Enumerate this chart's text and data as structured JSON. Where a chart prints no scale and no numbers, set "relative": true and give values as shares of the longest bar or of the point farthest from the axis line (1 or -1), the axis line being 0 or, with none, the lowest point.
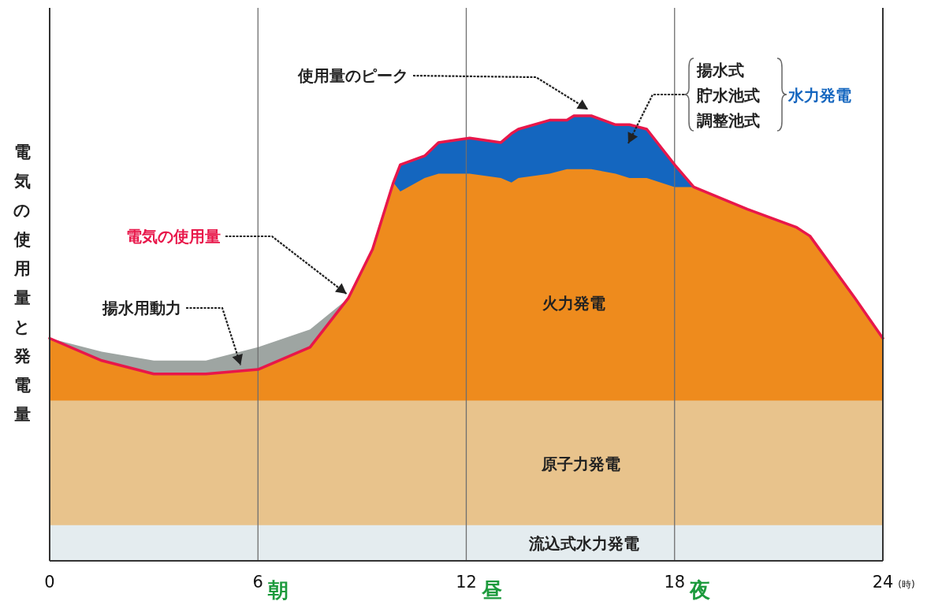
{
  "chart_data": {
    "type": "area",
    "relative": true,
    "ylabel": "電気の使用量と発電量",
    "xlabel": "(時)",
    "xlim": [
      0,
      24
    ],
    "xticks": [
      0,
      6,
      12,
      18,
      24
    ],
    "grid": "x",
    "x": [
      0,
      1.5,
      3,
      4.5,
      6,
      7.5,
      8.6,
      9.3,
      9.9,
      10.1,
      10.8,
      11.2,
      12.1,
      13.0,
      13.3,
      13.5,
      14.4,
      14.9,
      15.1,
      15.6,
      16.3,
      16.7,
      17.2,
      18.0,
      18.55,
      20.1,
      21.5,
      21.9,
      23.2,
      24
    ],
    "series": [
      {
        "name": "揚水用動力",
        "color": "#9ea5a2",
        "values": [
          0.5,
          0.47,
          0.45,
          0.45,
          0.48,
          0.52,
          0.59,
          null,
          null,
          null,
          null,
          null,
          null,
          null,
          null,
          null,
          null,
          null,
          null,
          null,
          null,
          null,
          null,
          null,
          null,
          null,
          null,
          null,
          null,
          null
        ]
      },
      {
        "name": "水力発電",
        "color": "#1466bf",
        "values": [
          null,
          null,
          null,
          null,
          null,
          null,
          null,
          null,
          0.85,
          0.89,
          0.91,
          0.94,
          0.95,
          0.94,
          0.96,
          0.97,
          0.99,
          0.99,
          1.0,
          1.0,
          0.98,
          0.98,
          0.97,
          0.89,
          0.84,
          null,
          null,
          null,
          null,
          null
        ]
      },
      {
        "name": "火力発電",
        "color": "#ee8b1d",
        "values": [
          0.5,
          0.45,
          0.42,
          0.42,
          0.43,
          0.48,
          0.59,
          0.7,
          0.85,
          0.83,
          0.86,
          0.87,
          0.87,
          0.86,
          0.85,
          0.86,
          0.87,
          0.88,
          0.88,
          0.88,
          0.87,
          0.86,
          0.86,
          0.84,
          0.84,
          0.79,
          0.75,
          0.73,
          0.59,
          0.5
        ]
      },
      {
        "name": "原子力発電",
        "color": "#e8c38c",
        "values": [
          0.36,
          0.36,
          0.36,
          0.36,
          0.36,
          0.36,
          0.36,
          0.36,
          0.36,
          0.36,
          0.36,
          0.36,
          0.36,
          0.36,
          0.36,
          0.36,
          0.36,
          0.36,
          0.36,
          0.36,
          0.36,
          0.36,
          0.36,
          0.36,
          0.36,
          0.36,
          0.36,
          0.36,
          0.36,
          0.36
        ]
      },
      {
        "name": "流込式水力発電",
        "color": "#e4ecef",
        "values": [
          0.08,
          0.08,
          0.08,
          0.08,
          0.08,
          0.08,
          0.08,
          0.08,
          0.08,
          0.08,
          0.08,
          0.08,
          0.08,
          0.08,
          0.08,
          0.08,
          0.08,
          0.08,
          0.08,
          0.08,
          0.08,
          0.08,
          0.08,
          0.08,
          0.08,
          0.08,
          0.08,
          0.08,
          0.08,
          0.08
        ]
      },
      {
        "name": "電気の使用量",
        "type": "line",
        "color": "#e8174a",
        "line_style": "solid",
        "values": [
          0.5,
          0.45,
          0.42,
          0.42,
          0.43,
          0.48,
          0.59,
          0.7,
          0.85,
          0.89,
          0.91,
          0.94,
          0.95,
          0.94,
          0.96,
          0.97,
          0.99,
          0.99,
          1.0,
          1.0,
          0.98,
          0.98,
          0.97,
          0.89,
          0.84,
          0.79,
          0.75,
          0.73,
          0.59,
          0.5
        ]
      }
    ],
    "annotations": [
      {
        "text": "使用量のピーク",
        "x": 15.6,
        "y": 1.0
      },
      "揚水式",
      "貯水池式",
      "調整池式",
      "朝",
      "昼",
      "夜"
    ]
  }
}
